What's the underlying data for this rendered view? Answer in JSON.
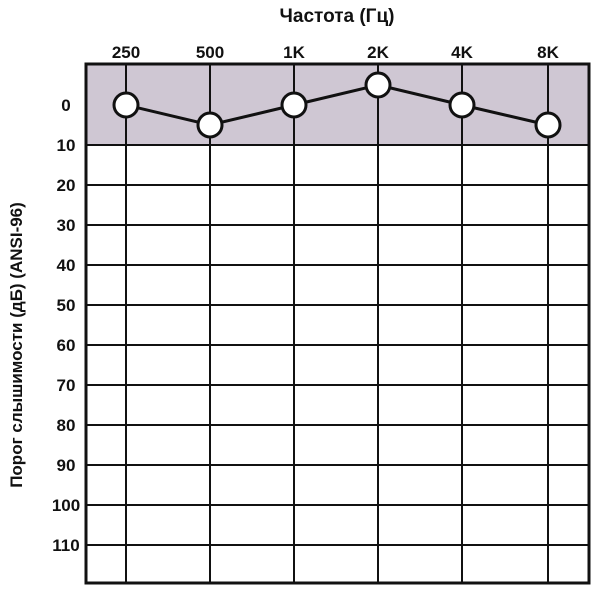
{
  "chart_data": {
    "type": "line",
    "title": "Частота (Гц)",
    "ylabel": "Порог слышимости (дБ) (ANSI-96)",
    "xlabel": "",
    "categories": [
      "250",
      "500",
      "1K",
      "2K",
      "4K",
      "8K"
    ],
    "y_ticks": [
      "0",
      "10",
      "20",
      "30",
      "40",
      "50",
      "60",
      "70",
      "80",
      "90",
      "100",
      "110"
    ],
    "ylim": [
      -10,
      120
    ],
    "y_inverted": true,
    "x_axis_position": "top",
    "grid": true,
    "shaded_band": {
      "from": -10,
      "to": 10,
      "color": "#cfc7d3"
    },
    "series": [
      {
        "values": [
          0,
          5,
          0,
          -5,
          0,
          5
        ],
        "marker": "circle",
        "color": "#111111"
      }
    ]
  }
}
